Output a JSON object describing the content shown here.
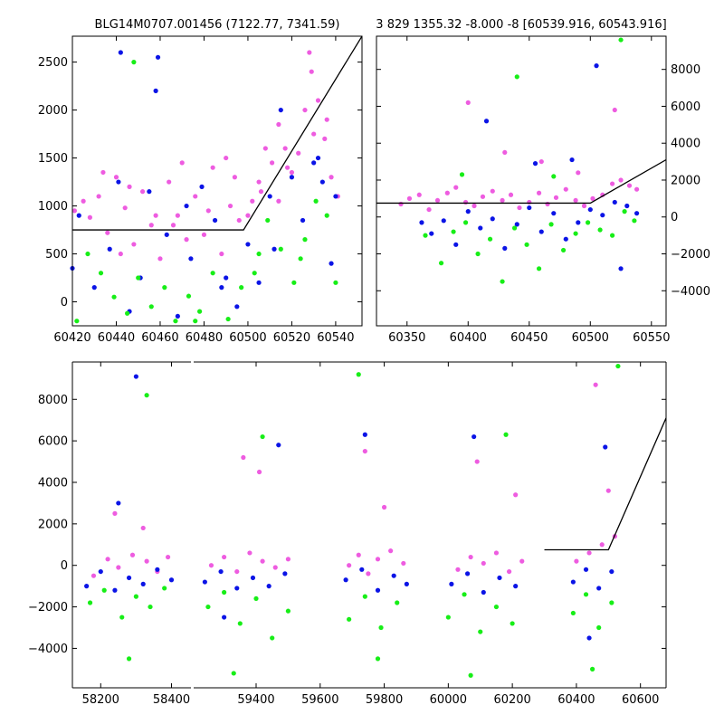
{
  "figure": {
    "background": "#ffffff",
    "colors": {
      "pink": "#ee5ce0",
      "blue": "#0b14e6",
      "green": "#17ee17",
      "model": "#000000"
    }
  },
  "chart_data": [
    {
      "id": "top-left",
      "type": "scatter",
      "title": "BLG14M0707.001456 (7122.77, 7341.59)",
      "xlim": [
        60420,
        60552
      ],
      "ylim": [
        -250,
        2770
      ],
      "xticks": [
        60420,
        60440,
        60460,
        60480,
        60500,
        60520,
        60540
      ],
      "yticks": [
        0,
        500,
        1000,
        1500,
        2000,
        2500
      ],
      "ytick_side": "left",
      "model_line": {
        "x": [
          60420,
          60498,
          60552
        ],
        "y": [
          750,
          750,
          2770
        ]
      },
      "series": [
        {
          "color": "pink",
          "x": [
            60421,
            60425,
            60428,
            60432,
            60436,
            60440,
            60444,
            60448,
            60452,
            60456,
            60460,
            60464,
            60468,
            60472,
            60476,
            60480,
            60484,
            60488,
            60492,
            60496,
            60500,
            60502,
            60505,
            60508,
            60511,
            60514,
            60517,
            60520,
            60523,
            60526,
            60529,
            60532,
            60535,
            60538,
            60541,
            60434,
            60446,
            60458,
            60470,
            60482,
            60494,
            60506,
            60518,
            60530,
            60442,
            60466,
            60490,
            60514,
            60528,
            60536
          ],
          "y": [
            950,
            1050,
            880,
            1100,
            720,
            1300,
            980,
            600,
            1150,
            800,
            450,
            1250,
            900,
            650,
            1100,
            700,
            1400,
            500,
            1000,
            850,
            900,
            1050,
            1250,
            1600,
            1450,
            1850,
            1600,
            1350,
            1550,
            2000,
            2400,
            2100,
            1700,
            1300,
            1100,
            1350,
            1200,
            900,
            1450,
            950,
            1300,
            1150,
            1400,
            1750,
            500,
            800,
            1500,
            1050,
            2600,
            1900
          ]
        },
        {
          "color": "blue",
          "x": [
            60420,
            60423,
            60430,
            60437,
            60441,
            60446,
            60451,
            60455,
            60459,
            60463,
            60468,
            60474,
            60479,
            60485,
            60490,
            60495,
            60500,
            60505,
            60510,
            60515,
            60520,
            60525,
            60530,
            60534,
            60538,
            60442,
            60458,
            60472,
            60488,
            60512,
            60532,
            60540
          ],
          "y": [
            350,
            900,
            150,
            550,
            1250,
            -100,
            250,
            1150,
            2550,
            700,
            -150,
            450,
            1200,
            850,
            250,
            -50,
            600,
            200,
            1100,
            2000,
            1300,
            850,
            1450,
            1250,
            400,
            2600,
            2200,
            1000,
            150,
            550,
            1500,
            1100
          ]
        },
        {
          "color": "green",
          "x": [
            60422,
            60427,
            60433,
            60439,
            60445,
            60450,
            60456,
            60462,
            60467,
            60473,
            60478,
            60484,
            60491,
            60497,
            60503,
            60509,
            60515,
            60521,
            60526,
            60531,
            60536,
            60540,
            60448,
            60476,
            60505,
            60524
          ],
          "y": [
            -200,
            500,
            300,
            50,
            -120,
            250,
            -50,
            150,
            -200,
            60,
            -100,
            300,
            -180,
            150,
            300,
            850,
            550,
            200,
            650,
            1050,
            900,
            200,
            2500,
            -200,
            500,
            450
          ]
        }
      ]
    },
    {
      "id": "top-right",
      "type": "scatter",
      "title": "3 829 1355.32 -8.000 -8 [60539.916, 60543.916]",
      "xlim": [
        60325,
        60562
      ],
      "ylim": [
        -5900,
        9800
      ],
      "xticks": [
        60350,
        60400,
        60450,
        60500,
        60550
      ],
      "yticks": [
        -4000,
        -2000,
        0,
        2000,
        4000,
        6000,
        8000
      ],
      "ytick_side": "right",
      "model_line": {
        "x": [
          60325,
          60500,
          60562
        ],
        "y": [
          750,
          750,
          3100
        ]
      },
      "series": [
        {
          "color": "pink",
          "x": [
            60345,
            60352,
            60360,
            60368,
            60375,
            60383,
            60390,
            60398,
            60405,
            60412,
            60420,
            60428,
            60435,
            60442,
            60450,
            60458,
            60465,
            60472,
            60480,
            60488,
            60495,
            60502,
            60510,
            60518,
            60525,
            60532,
            60538,
            60400,
            60430,
            60460,
            60490,
            60520
          ],
          "y": [
            700,
            1000,
            1200,
            400,
            900,
            1300,
            1600,
            800,
            600,
            1100,
            1400,
            900,
            1200,
            500,
            800,
            1300,
            700,
            1050,
            1500,
            900,
            600,
            1000,
            1200,
            1800,
            2000,
            1700,
            1500,
            6200,
            3500,
            3000,
            2400,
            5800
          ]
        },
        {
          "color": "blue",
          "x": [
            60362,
            60370,
            60380,
            60390,
            60400,
            60410,
            60420,
            60430,
            60440,
            60450,
            60460,
            60470,
            60480,
            60490,
            60500,
            60510,
            60520,
            60530,
            60538,
            60415,
            60455,
            60485,
            60505,
            60525
          ],
          "y": [
            -300,
            -900,
            -200,
            -1500,
            300,
            -600,
            -100,
            -1700,
            -400,
            500,
            -800,
            200,
            -1200,
            -300,
            400,
            100,
            800,
            600,
            200,
            5200,
            2900,
            3100,
            8200,
            -2800
          ]
        },
        {
          "color": "green",
          "x": [
            60365,
            60378,
            60388,
            60398,
            60408,
            60418,
            60428,
            60438,
            60448,
            60458,
            60468,
            60478,
            60488,
            60498,
            60508,
            60518,
            60528,
            60536,
            60395,
            60440,
            60470,
            60525
          ],
          "y": [
            -1000,
            -2500,
            -800,
            -300,
            -2000,
            -1200,
            -3500,
            -600,
            -1500,
            -2800,
            -400,
            -1800,
            -900,
            -300,
            -700,
            -1000,
            300,
            -200,
            2300,
            7600,
            2200,
            9600
          ]
        }
      ]
    },
    {
      "id": "bottom",
      "type": "scatter",
      "title": "",
      "segments": [
        {
          "xlim": [
            58120,
            58455
          ],
          "xticks": [
            58200,
            58400
          ]
        },
        {
          "xlim": [
            59205,
            60680
          ],
          "xticks": [
            59400,
            59600,
            59800,
            60000,
            60200,
            60400,
            60600
          ]
        }
      ],
      "ylim": [
        -5900,
        9800
      ],
      "yticks": [
        -4000,
        -2000,
        0,
        2000,
        4000,
        6000,
        8000
      ],
      "ytick_side": "left",
      "model_line": {
        "x": [
          60300,
          60500,
          60680
        ],
        "y": [
          750,
          750,
          7100
        ]
      },
      "series": [
        {
          "color": "pink",
          "x": [
            58180,
            58220,
            58250,
            58290,
            58330,
            58360,
            58390,
            58240,
            58320,
            59260,
            59300,
            59340,
            59380,
            59420,
            59460,
            59500,
            59360,
            59410,
            59690,
            59720,
            59750,
            59780,
            59820,
            59860,
            59740,
            59800,
            60030,
            60070,
            60110,
            60150,
            60190,
            60230,
            60090,
            60210,
            60400,
            60440,
            60480,
            60520,
            60460,
            60500
          ],
          "y": [
            -500,
            300,
            -100,
            500,
            200,
            -300,
            400,
            2500,
            1800,
            0,
            400,
            -300,
            600,
            200,
            -100,
            300,
            5200,
            4500,
            0,
            500,
            -400,
            300,
            700,
            100,
            5500,
            2800,
            -200,
            400,
            100,
            600,
            -300,
            200,
            5000,
            3400,
            200,
            600,
            1000,
            1400,
            8700,
            3600
          ]
        },
        {
          "color": "blue",
          "x": [
            58160,
            58200,
            58240,
            58280,
            58320,
            58360,
            58400,
            58250,
            58300,
            59240,
            59290,
            59340,
            59390,
            59440,
            59490,
            59300,
            59470,
            59680,
            59730,
            59780,
            59830,
            59870,
            59740,
            60010,
            60060,
            60110,
            60160,
            60210,
            60080,
            60390,
            60430,
            60470,
            60510,
            60440,
            60490
          ],
          "y": [
            -1000,
            -300,
            -1200,
            -600,
            -900,
            -200,
            -700,
            3000,
            9100,
            -800,
            -300,
            -1100,
            -600,
            -1000,
            -400,
            -2500,
            5800,
            -700,
            -200,
            -1200,
            -500,
            -900,
            6300,
            -900,
            -400,
            -1300,
            -600,
            -1000,
            6200,
            -800,
            -200,
            -1100,
            -300,
            -3500,
            5700
          ]
        },
        {
          "color": "green",
          "x": [
            58170,
            58210,
            58260,
            58300,
            58340,
            58380,
            58280,
            58330,
            59250,
            59300,
            59350,
            59400,
            59450,
            59500,
            59330,
            59420,
            59690,
            59740,
            59790,
            59840,
            59720,
            59780,
            60000,
            60050,
            60100,
            60150,
            60200,
            60070,
            60180,
            60390,
            60430,
            60470,
            60510,
            60450,
            60530
          ],
          "y": [
            -1800,
            -1200,
            -2500,
            -1500,
            -2000,
            -1100,
            -4500,
            8200,
            -2000,
            -1300,
            -2800,
            -1600,
            -3500,
            -2200,
            -5200,
            6200,
            -2600,
            -1500,
            -3000,
            -1800,
            9200,
            -4500,
            -2500,
            -1400,
            -3200,
            -2000,
            -2800,
            -5300,
            6300,
            -2300,
            -1400,
            -3000,
            -1800,
            -5000,
            9600
          ]
        }
      ]
    }
  ]
}
